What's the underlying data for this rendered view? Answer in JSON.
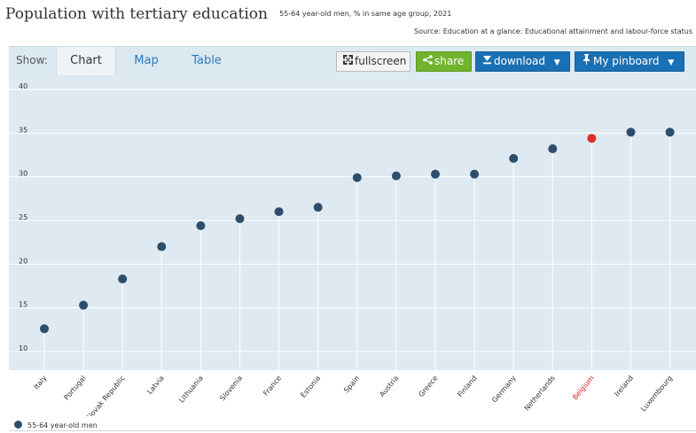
{
  "header": {
    "title": "Population with tertiary education",
    "subtitle": "55-64 year-old men, % in same age group, 2021",
    "source": "Source: Education at a glance: Educational attainment and labour-force status"
  },
  "toolbar": {
    "show_label": "Show:",
    "tabs": [
      "Chart",
      "Map",
      "Table"
    ],
    "active_tab": "Chart",
    "fullscreen_label": "fullscreen",
    "share_label": "share",
    "download_label": "download",
    "pinboard_label": "My pinboard",
    "fullscreen_icon": "expand-icon",
    "share_icon": "share-icon",
    "download_icon": "download-icon",
    "pinboard_icon": "pin-icon"
  },
  "legend": {
    "label": "55-64 year-old men"
  },
  "colors": {
    "point": "#2d4e6b",
    "highlight": "#e02d2d",
    "highlight_label": "#d62020",
    "plot_bg": "#dfe9f1",
    "grid": "#ffffff"
  },
  "chart_data": {
    "type": "scatter",
    "categories": [
      "Italy",
      "Portugal",
      "Slovak Republic",
      "Latvia",
      "Lithuania",
      "Slovenia",
      "France",
      "Estonia",
      "Spain",
      "Austria",
      "Greece",
      "Finland",
      "Germany",
      "Netherlands",
      "Belgium",
      "Ireland",
      "Luxembourg"
    ],
    "series": [
      {
        "name": "55-64 year-old men",
        "values": [
          12.2,
          14.9,
          17.9,
          21.6,
          24.0,
          24.8,
          25.6,
          26.1,
          29.5,
          29.7,
          29.9,
          29.9,
          31.7,
          32.8,
          34.0,
          34.7,
          34.7
        ]
      }
    ],
    "highlight": "Belgium",
    "yticks": [
      10,
      15,
      20,
      25,
      30,
      35,
      40
    ],
    "ylim": [
      9,
      40
    ],
    "grid": true,
    "legend_position": "bottom-left"
  }
}
